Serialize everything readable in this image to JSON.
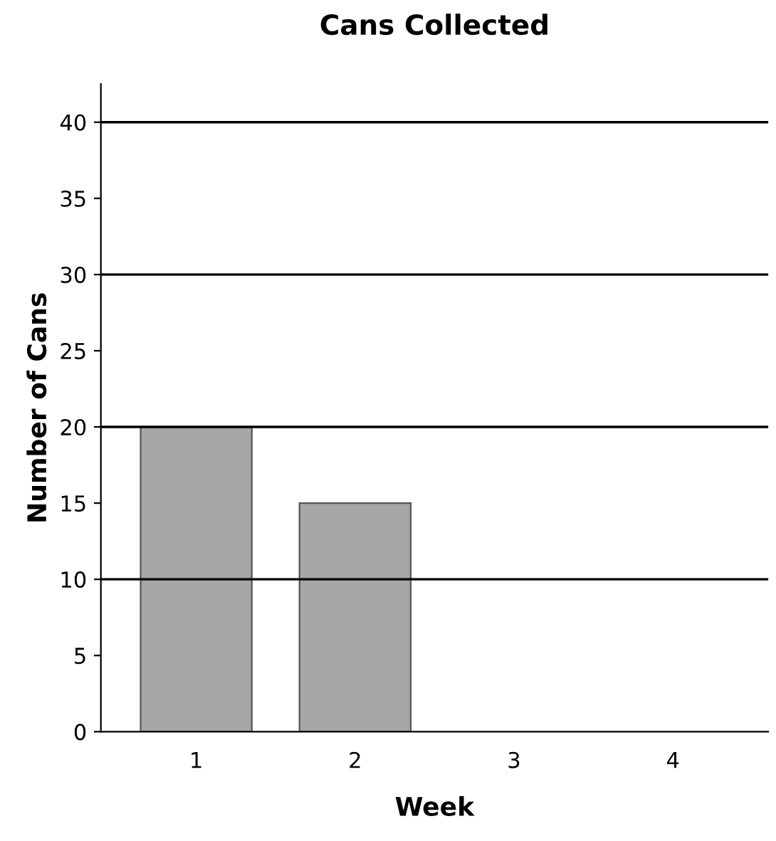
{
  "chart_data": {
    "type": "bar",
    "title": "Cans Collected",
    "xlabel": "Week",
    "ylabel": "Number of Cans",
    "categories": [
      "1",
      "2",
      "3",
      "4"
    ],
    "values": [
      20,
      15,
      null,
      null
    ],
    "color": "#a6a6a6",
    "ylim": [
      0,
      42.5
    ],
    "yticks": [
      0,
      5,
      10,
      15,
      20,
      25,
      30,
      35,
      40
    ],
    "grid": false,
    "ref_lines": [
      {
        "axis": "y",
        "value": 10,
        "color": "#000000"
      },
      {
        "axis": "y",
        "value": 20,
        "color": "#000000"
      },
      {
        "axis": "y",
        "value": 30,
        "color": "#000000"
      },
      {
        "axis": "y",
        "value": 40,
        "color": "#000000"
      }
    ]
  }
}
